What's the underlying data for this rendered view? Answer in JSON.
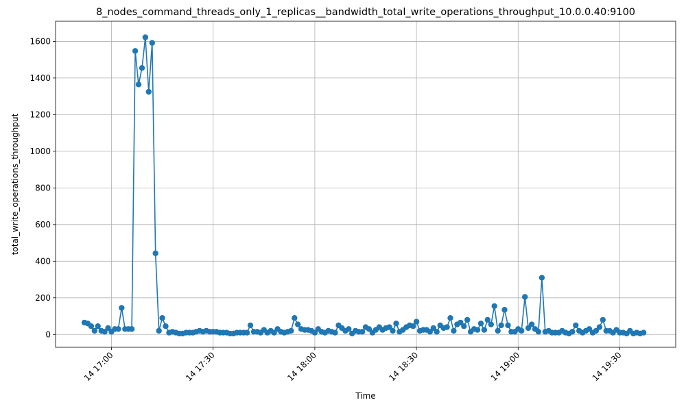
{
  "chart_data": {
    "type": "line",
    "title": "8_nodes_command_threads_only_1_replicas__bandwidth_total_write_operations_throughput_10.0.0.40:9100",
    "xlabel": "Time",
    "ylabel": "total_write_operations_throughput",
    "grid": true,
    "color": "#1f77b4",
    "xlim_minutes": [
      -16.5,
      166.5
    ],
    "ylim": [
      -70,
      1710
    ],
    "x_ticks": [
      {
        "minute": 0,
        "label": "14 17:00"
      },
      {
        "minute": 30,
        "label": "14 17:30"
      },
      {
        "minute": 60,
        "label": "14 18:00"
      },
      {
        "minute": 90,
        "label": "14 18:30"
      },
      {
        "minute": 120,
        "label": "14 19:00"
      },
      {
        "minute": 150,
        "label": "14 19:30"
      }
    ],
    "y_ticks": [
      0,
      200,
      400,
      600,
      800,
      1000,
      1200,
      1400,
      1600
    ],
    "series": [
      {
        "name": "total_write_operations_throughput",
        "x_minutes": [
          -8,
          -7,
          -6,
          -5,
          -4,
          -3,
          -2,
          -1,
          0,
          1,
          2,
          3,
          4,
          5,
          6,
          7,
          8,
          9,
          10,
          11,
          12,
          13,
          14,
          15,
          16,
          17,
          18,
          19,
          20,
          21,
          22,
          23,
          24,
          25,
          26,
          27,
          28,
          29,
          30,
          31,
          32,
          33,
          34,
          35,
          36,
          37,
          38,
          39,
          40,
          41,
          42,
          43,
          44,
          45,
          46,
          47,
          48,
          49,
          50,
          51,
          52,
          53,
          54,
          55,
          56,
          57,
          58,
          59,
          60,
          61,
          62,
          63,
          64,
          65,
          66,
          67,
          68,
          69,
          70,
          71,
          72,
          73,
          74,
          75,
          76,
          77,
          78,
          79,
          80,
          81,
          82,
          83,
          84,
          85,
          86,
          87,
          88,
          89,
          90,
          91,
          92,
          93,
          94,
          95,
          96,
          97,
          98,
          99,
          100,
          101,
          102,
          103,
          104,
          105,
          106,
          107,
          108,
          109,
          110,
          111,
          112,
          113,
          114,
          115,
          116,
          117,
          118,
          119,
          120,
          121,
          122,
          123,
          124,
          125,
          126,
          127,
          128,
          129,
          130,
          131,
          132,
          133,
          134,
          135,
          136,
          137,
          138,
          139,
          140,
          141,
          142,
          143,
          144,
          145,
          146,
          147,
          148,
          149,
          150,
          151,
          152,
          153,
          154,
          155,
          156,
          157
        ],
        "values": [
          65,
          60,
          45,
          20,
          45,
          20,
          15,
          35,
          15,
          30,
          30,
          145,
          30,
          30,
          30,
          1548,
          1365,
          1455,
          1622,
          1325,
          1592,
          443,
          20,
          90,
          45,
          10,
          15,
          10,
          5,
          5,
          10,
          10,
          10,
          15,
          20,
          15,
          20,
          15,
          15,
          15,
          10,
          10,
          10,
          5,
          5,
          10,
          10,
          10,
          10,
          50,
          15,
          15,
          10,
          25,
          10,
          20,
          10,
          30,
          15,
          10,
          15,
          20,
          90,
          55,
          30,
          25,
          25,
          20,
          10,
          30,
          15,
          10,
          20,
          15,
          10,
          50,
          35,
          20,
          30,
          5,
          20,
          15,
          15,
          40,
          30,
          10,
          25,
          40,
          25,
          35,
          40,
          20,
          60,
          15,
          25,
          40,
          50,
          45,
          70,
          20,
          25,
          25,
          15,
          35,
          15,
          50,
          35,
          40,
          90,
          20,
          55,
          65,
          45,
          80,
          15,
          30,
          25,
          60,
          25,
          80,
          55,
          155,
          20,
          50,
          135,
          50,
          15,
          15,
          30,
          20,
          205,
          35,
          55,
          30,
          15,
          310,
          15,
          20,
          10,
          10,
          10,
          20,
          10,
          5,
          15,
          50,
          20,
          10,
          20,
          30,
          10,
          20,
          40,
          80,
          20,
          20,
          10,
          25,
          10,
          10,
          5,
          20,
          5,
          10,
          5,
          10
        ]
      }
    ]
  }
}
